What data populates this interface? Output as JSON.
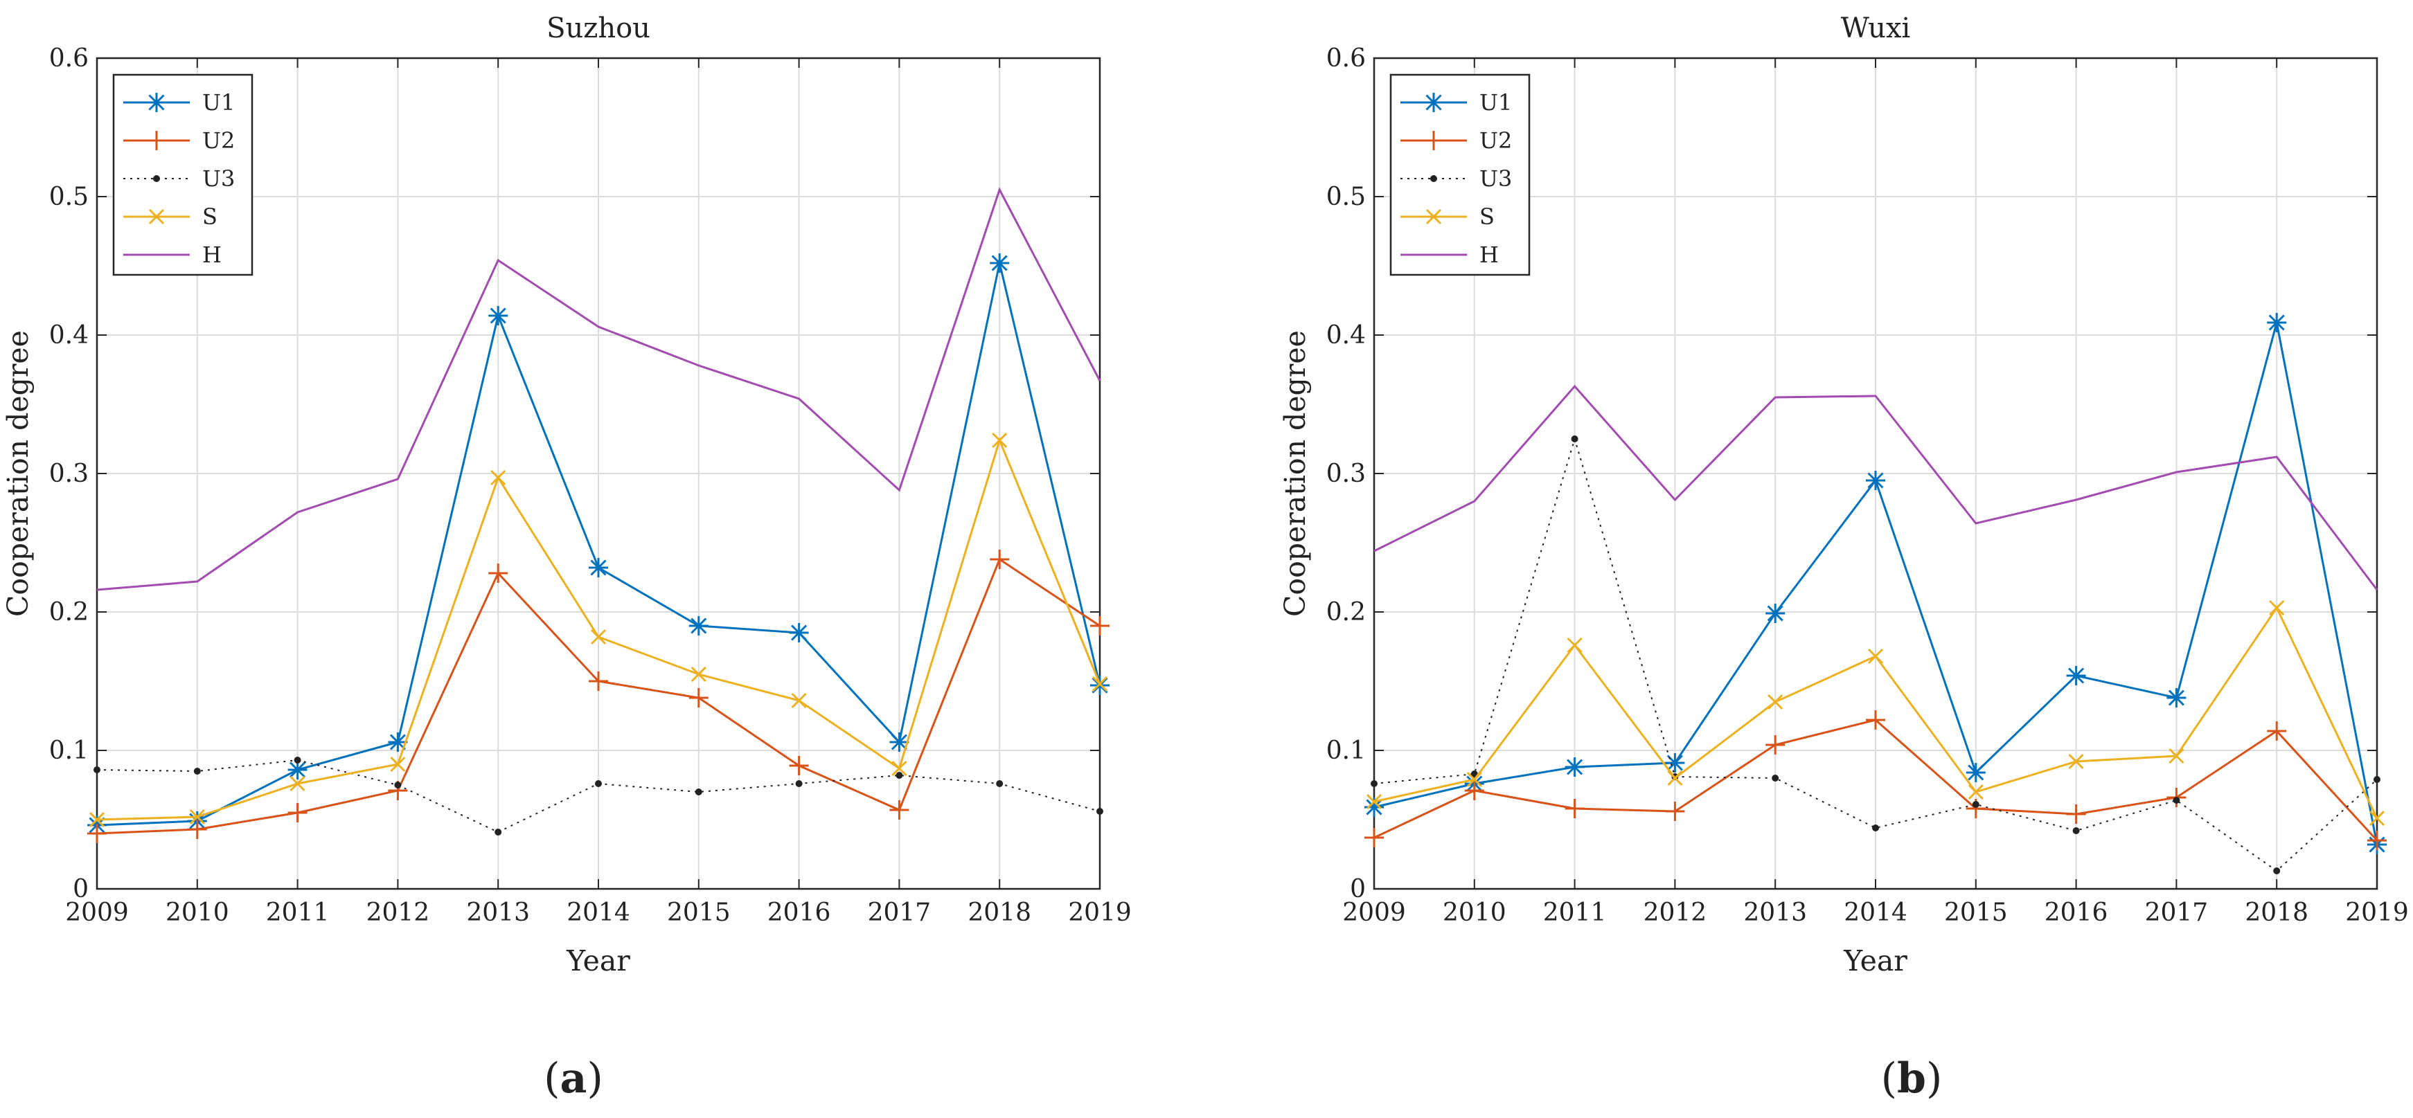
{
  "chart_data": [
    {
      "type": "line",
      "title": "Suzhou",
      "xlabel": "Year",
      "ylabel": "Cooperation degree",
      "panel_label": "a",
      "x": [
        2009,
        2010,
        2011,
        2012,
        2013,
        2014,
        2015,
        2016,
        2017,
        2018,
        2019
      ],
      "xlim": [
        2009,
        2019
      ],
      "ylim": [
        0,
        0.6
      ],
      "yticks": [
        0,
        0.1,
        0.2,
        0.3,
        0.4,
        0.5,
        0.6
      ],
      "ytick_labels": [
        "0",
        "0.1",
        "0.2",
        "0.3",
        "0.4",
        "0.5",
        "0.6"
      ],
      "grid": true,
      "legend_position": "top-left",
      "series": [
        {
          "name": "U1",
          "color": "#0072BD",
          "marker": "asterisk",
          "style": "solid",
          "values": [
            0.046,
            0.049,
            0.086,
            0.106,
            0.414,
            0.232,
            0.19,
            0.185,
            0.106,
            0.452,
            0.147
          ]
        },
        {
          "name": "U2",
          "color": "#D95319",
          "marker": "plus",
          "style": "solid",
          "values": [
            0.04,
            0.043,
            0.055,
            0.071,
            0.228,
            0.15,
            0.138,
            0.089,
            0.057,
            0.238,
            0.19
          ]
        },
        {
          "name": "U3",
          "color": "#222222",
          "marker": "dot",
          "style": "dotted",
          "values": [
            0.086,
            0.085,
            0.093,
            0.075,
            0.041,
            0.076,
            0.07,
            0.076,
            0.082,
            0.076,
            0.056
          ]
        },
        {
          "name": "S",
          "color": "#EDB120",
          "marker": "x",
          "style": "solid",
          "values": [
            0.05,
            0.052,
            0.076,
            0.09,
            0.297,
            0.182,
            0.155,
            0.136,
            0.087,
            0.324,
            0.148
          ]
        },
        {
          "name": "H",
          "color": "#A24CB0",
          "marker": "none",
          "style": "solid",
          "values": [
            0.216,
            0.222,
            0.272,
            0.296,
            0.454,
            0.406,
            0.378,
            0.354,
            0.288,
            0.505,
            0.367
          ]
        }
      ]
    },
    {
      "type": "line",
      "title": "Wuxi",
      "xlabel": "Year",
      "ylabel": "Cooperation degree",
      "panel_label": "b",
      "x": [
        2009,
        2010,
        2011,
        2012,
        2013,
        2014,
        2015,
        2016,
        2017,
        2018,
        2019
      ],
      "xlim": [
        2009,
        2019
      ],
      "ylim": [
        0,
        0.6
      ],
      "yticks": [
        0,
        0.1,
        0.2,
        0.3,
        0.4,
        0.5,
        0.6
      ],
      "ytick_labels": [
        "0",
        "0.1",
        "0.2",
        "0.3",
        "0.4",
        "0.5",
        "0.6"
      ],
      "grid": true,
      "legend_position": "top-left",
      "series": [
        {
          "name": "U1",
          "color": "#0072BD",
          "marker": "asterisk",
          "style": "solid",
          "values": [
            0.059,
            0.076,
            0.088,
            0.091,
            0.199,
            0.295,
            0.084,
            0.154,
            0.138,
            0.409,
            0.032
          ]
        },
        {
          "name": "U2",
          "color": "#D95319",
          "marker": "plus",
          "style": "solid",
          "values": [
            0.037,
            0.071,
            0.058,
            0.056,
            0.104,
            0.122,
            0.058,
            0.054,
            0.066,
            0.114,
            0.035
          ]
        },
        {
          "name": "U3",
          "color": "#222222",
          "marker": "dot",
          "style": "dotted",
          "values": [
            0.076,
            0.083,
            0.325,
            0.081,
            0.08,
            0.044,
            0.061,
            0.042,
            0.064,
            0.013,
            0.079
          ]
        },
        {
          "name": "S",
          "color": "#EDB120",
          "marker": "x",
          "style": "solid",
          "values": [
            0.063,
            0.079,
            0.176,
            0.08,
            0.135,
            0.168,
            0.07,
            0.092,
            0.096,
            0.203,
            0.051
          ]
        },
        {
          "name": "H",
          "color": "#A24CB0",
          "marker": "none",
          "style": "solid",
          "values": [
            0.244,
            0.28,
            0.363,
            0.281,
            0.355,
            0.356,
            0.264,
            0.281,
            0.301,
            0.312,
            0.216
          ]
        }
      ]
    }
  ]
}
